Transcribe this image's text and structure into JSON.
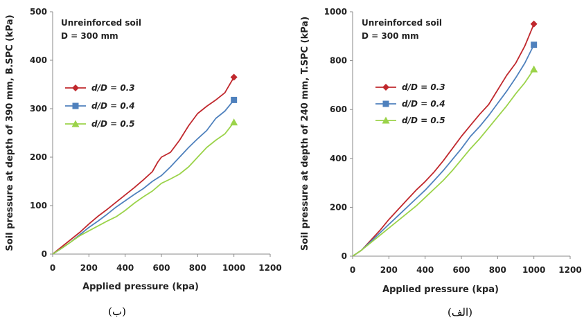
{
  "chart_data": [
    {
      "type": "line",
      "caption": "(ب)",
      "annotation": [
        "Unreinforced soil",
        "D = 300 mm"
      ],
      "xlabel": "Applied pressure (kpa)",
      "ylabel": "Soil pressure at depth of 390 mm, B.SPC (kPa)",
      "xlim": [
        0,
        1200
      ],
      "ylim": [
        0,
        500
      ],
      "xticks": [
        "0",
        "200",
        "400",
        "600",
        "800",
        "1000",
        "1200"
      ],
      "yticks": [
        "0",
        "100",
        "200",
        "300",
        "400",
        "500"
      ],
      "legend_position": "left",
      "series": [
        {
          "name": "d/D = 0.3",
          "color": "#c0282d",
          "marker": "diamond",
          "x": [
            0,
            50,
            100,
            150,
            200,
            250,
            300,
            350,
            400,
            450,
            500,
            550,
            580,
            600,
            650,
            700,
            750,
            800,
            850,
            900,
            950,
            1000
          ],
          "y": [
            0,
            15,
            30,
            45,
            62,
            78,
            92,
            107,
            122,
            137,
            153,
            170,
            190,
            200,
            210,
            235,
            265,
            290,
            305,
            318,
            333,
            365
          ]
        },
        {
          "name": "d/D = 0.4",
          "color": "#4f81bd",
          "marker": "square",
          "x": [
            0,
            50,
            100,
            150,
            200,
            250,
            300,
            350,
            400,
            450,
            500,
            550,
            600,
            650,
            700,
            750,
            800,
            850,
            900,
            950,
            1000
          ],
          "y": [
            0,
            12,
            25,
            40,
            55,
            68,
            82,
            97,
            110,
            123,
            135,
            150,
            162,
            180,
            200,
            220,
            238,
            255,
            280,
            295,
            318
          ]
        },
        {
          "name": "d/D = 0.5",
          "color": "#9bd34a",
          "marker": "triangle",
          "x": [
            0,
            50,
            100,
            150,
            200,
            250,
            300,
            350,
            400,
            450,
            500,
            550,
            600,
            650,
            700,
            750,
            800,
            850,
            900,
            950,
            1000
          ],
          "y": [
            0,
            12,
            25,
            38,
            48,
            58,
            68,
            77,
            90,
            105,
            118,
            130,
            146,
            155,
            165,
            180,
            200,
            220,
            235,
            248,
            272
          ]
        }
      ]
    },
    {
      "type": "line",
      "caption": "(الف)",
      "annotation": [
        "Unreinforced soil",
        "D = 300 mm"
      ],
      "xlabel": "Applied pressure (kpa)",
      "ylabel": "Soil pressure at depth of 240 mm, T.SPC (kPa)",
      "xlim": [
        0,
        1200
      ],
      "ylim": [
        0,
        1000
      ],
      "xticks": [
        "0",
        "200",
        "400",
        "600",
        "800",
        "1000",
        "1200"
      ],
      "yticks": [
        "0",
        "200",
        "400",
        "600",
        "800",
        "1000"
      ],
      "legend_position": "left",
      "series": [
        {
          "name": "d/D = 0.3",
          "color": "#c0282d",
          "marker": "diamond",
          "x": [
            0,
            50,
            100,
            150,
            200,
            250,
            300,
            350,
            400,
            450,
            500,
            550,
            600,
            650,
            700,
            750,
            800,
            850,
            900,
            950,
            1000
          ],
          "y": [
            0,
            25,
            65,
            105,
            150,
            190,
            230,
            270,
            305,
            345,
            390,
            440,
            490,
            535,
            580,
            620,
            680,
            740,
            790,
            860,
            950
          ]
        },
        {
          "name": "d/D = 0.4",
          "color": "#4f81bd",
          "marker": "square",
          "x": [
            0,
            50,
            100,
            150,
            200,
            250,
            300,
            350,
            400,
            450,
            500,
            550,
            600,
            650,
            700,
            750,
            800,
            850,
            900,
            950,
            1000
          ],
          "y": [
            0,
            25,
            60,
            95,
            130,
            165,
            200,
            235,
            270,
            310,
            350,
            395,
            440,
            490,
            530,
            575,
            625,
            675,
            730,
            790,
            865
          ]
        },
        {
          "name": "d/D = 0.5",
          "color": "#9bd34a",
          "marker": "triangle",
          "x": [
            0,
            50,
            100,
            150,
            200,
            250,
            300,
            350,
            400,
            450,
            500,
            550,
            600,
            650,
            700,
            750,
            800,
            850,
            900,
            950,
            1000
          ],
          "y": [
            0,
            25,
            55,
            85,
            115,
            145,
            175,
            205,
            240,
            275,
            310,
            350,
            395,
            440,
            480,
            525,
            570,
            615,
            665,
            710,
            765
          ]
        }
      ]
    }
  ]
}
